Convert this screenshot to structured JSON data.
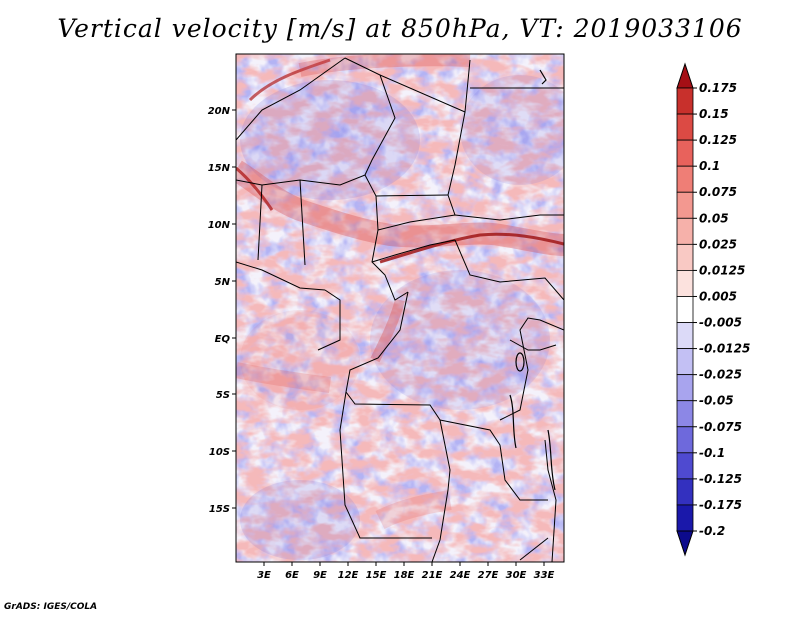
{
  "title": "Vertical velocity [m/s] at 850hPa, VT: 2019033106",
  "credit": "GrADS: IGES/COLA",
  "map": {
    "lat_ticks": [
      "20N",
      "15N",
      "10N",
      "5N",
      "EQ",
      "5S",
      "10S",
      "15S"
    ],
    "lon_ticks": [
      "3E",
      "6E",
      "9E",
      "12E",
      "15E",
      "18E",
      "21E",
      "24E",
      "27E",
      "30E",
      "33E"
    ]
  },
  "colorbar": {
    "labels": [
      "0.175",
      "0.15",
      "0.125",
      "0.1",
      "0.075",
      "0.05",
      "0.025",
      "0.0125",
      "0.005",
      "-0.005",
      "-0.0125",
      "-0.025",
      "-0.05",
      "-0.075",
      "-0.1",
      "-0.125",
      "-0.175",
      "-0.2"
    ],
    "colors": [
      "#a50f15",
      "#c8302c",
      "#dc4a44",
      "#e8625c",
      "#ef7e76",
      "#f39890",
      "#f6b1aa",
      "#f9c9c4",
      "#fce2de",
      "#ffffff",
      "#dcdaf8",
      "#c3c0f4",
      "#a8a4ee",
      "#8c87e6",
      "#6e69dc",
      "#4f4ad0",
      "#3330bf",
      "#1a18aa",
      "#0c0a8c"
    ]
  },
  "colors": {
    "positive": "#e05050",
    "negative": "#5050d8",
    "boundary": "#000000"
  }
}
